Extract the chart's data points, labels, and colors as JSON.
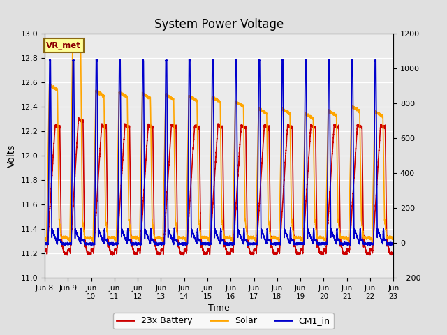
{
  "title": "System Power Voltage",
  "xlabel": "Time",
  "ylabel": "Volts",
  "ylim_left": [
    11.0,
    13.0
  ],
  "ylim_right": [
    -200,
    1200
  ],
  "yticks_left": [
    11.0,
    11.2,
    11.4,
    11.6,
    11.8,
    12.0,
    12.2,
    12.4,
    12.6,
    12.8,
    13.0
  ],
  "yticks_right": [
    -200,
    0,
    200,
    400,
    600,
    800,
    1000,
    1200
  ],
  "bg_color": "#e0e0e0",
  "plot_bg_color": "#ebebeb",
  "annotation_text": "VR_met",
  "annotation_color": "#8b0000",
  "annotation_bg": "#ffff99",
  "annotation_border": "#8b6914",
  "series": [
    {
      "label": "23x Battery",
      "color": "#cc0000",
      "lw": 1.2
    },
    {
      "label": "Solar",
      "color": "#ffa500",
      "lw": 1.2
    },
    {
      "label": "CM1_in",
      "color": "#0000cc",
      "lw": 1.2
    }
  ],
  "x_start": 8,
  "x_end": 23,
  "x_ticks": [
    8,
    9,
    10,
    11,
    12,
    13,
    14,
    15,
    16,
    17,
    18,
    19,
    20,
    21,
    22,
    23
  ],
  "x_tick_labels": [
    "Jun 8",
    "Jun 9",
    "Jun\n10",
    "Jun\n11",
    "Jun\n12",
    "Jun\n13",
    "Jun\n14",
    "Jun\n15",
    "Jun\n16",
    "Jun\n17",
    "Jun\n18",
    "Jun\n19",
    "Jun\n20",
    "Jun\n21",
    "Jun\n22",
    "Jun\n23"
  ]
}
